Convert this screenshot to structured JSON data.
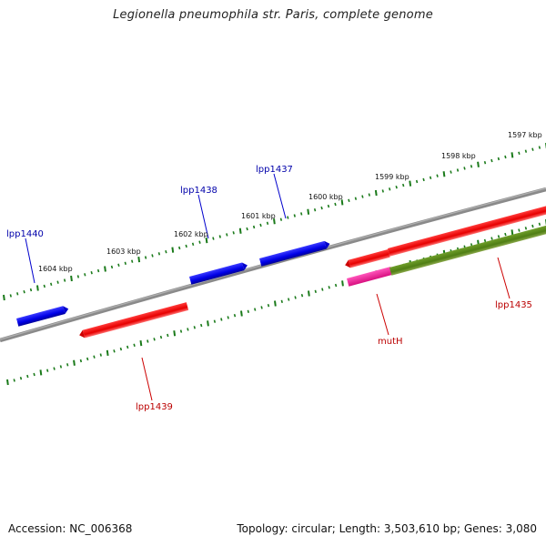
{
  "title": "Legionella pneumophila str. Paris, complete genome",
  "footer": {
    "accession": "Accession: NC_006368",
    "summary": "Topology: circular; Length: 3,503,610 bp; Genes: 3,080"
  },
  "colors": {
    "backbone": "#808080",
    "forward_gene": "#0000ee",
    "reverse_gene": "#ee0000",
    "rrna_like": "#ee2299",
    "olive_feature": "#5a8a1a",
    "tick": "#1a7a1a"
  },
  "scale_labels": [
    "1604 kbp",
    "1603 kbp",
    "1602 kbp",
    "1601 kbp",
    "1600 kbp",
    "1599 kbp",
    "1598 kbp",
    "1597 kbp"
  ],
  "genes_forward": [
    "lpp1440",
    "lpp1438",
    "lpp1437"
  ],
  "genes_reverse": [
    "lpp1439",
    "mutH",
    "lpp1435"
  ]
}
